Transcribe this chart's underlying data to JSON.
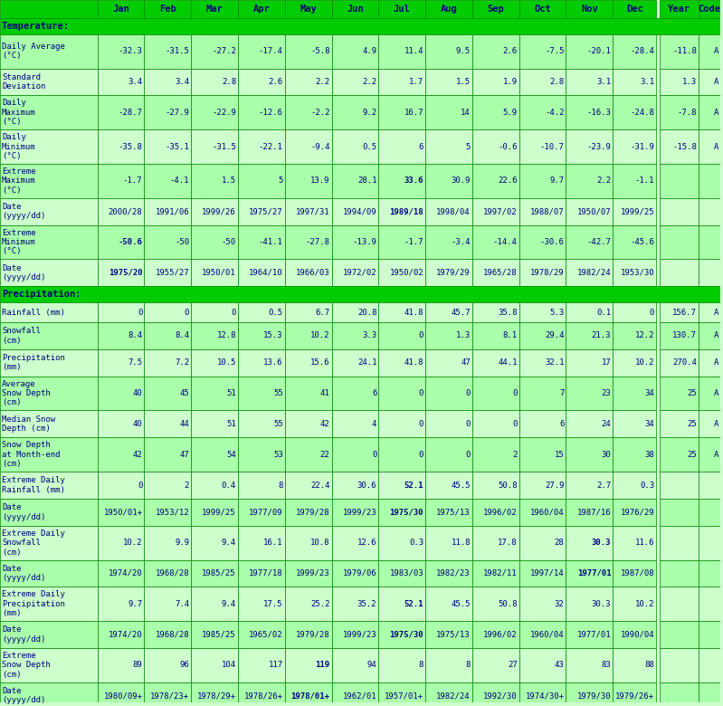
{
  "headers": [
    "",
    "Jan",
    "Feb",
    "Mar",
    "Apr",
    "May",
    "Jun",
    "Jul",
    "Aug",
    "Sep",
    "Oct",
    "Nov",
    "Dec",
    "Year",
    "Code"
  ],
  "rows": [
    {
      "label": "Temperature:",
      "type": "section_header",
      "values": [
        "",
        "",
        "",
        "",
        "",
        "",
        "",
        "",
        "",
        "",
        "",
        "",
        "",
        ""
      ]
    },
    {
      "label": "Daily Average\n(°C)",
      "type": "data",
      "values": [
        "-32.3",
        "-31.5",
        "-27.2",
        "-17.4",
        "-5.8",
        "4.9",
        "11.4",
        "9.5",
        "2.6",
        "-7.5",
        "-20.1",
        "-28.4",
        "-11.8",
        "A"
      ]
    },
    {
      "label": "Standard\nDeviation",
      "type": "data_alt",
      "values": [
        "3.4",
        "3.4",
        "2.8",
        "2.6",
        "2.2",
        "2.2",
        "1.7",
        "1.5",
        "1.9",
        "2.8",
        "3.1",
        "3.1",
        "1.3",
        "A"
      ]
    },
    {
      "label": "Daily\nMaximum\n(°C)",
      "type": "data",
      "values": [
        "-28.7",
        "-27.9",
        "-22.9",
        "-12.6",
        "-2.2",
        "9.2",
        "16.7",
        "14",
        "5.9",
        "-4.2",
        "-16.3",
        "-24.8",
        "-7.8",
        "A"
      ]
    },
    {
      "label": "Daily\nMinimum\n(°C)",
      "type": "data_alt",
      "values": [
        "-35.8",
        "-35.1",
        "-31.5",
        "-22.1",
        "-9.4",
        "0.5",
        "6",
        "5",
        "-0.6",
        "-10.7",
        "-23.9",
        "-31.9",
        "-15.8",
        "A"
      ]
    },
    {
      "label": "Extreme\nMaximum\n(°C)",
      "type": "data",
      "values": [
        "-1.7",
        "-4.1",
        "1.5",
        "5",
        "13.9",
        "28.1",
        "33.6",
        "30.9",
        "22.6",
        "9.7",
        "2.2",
        "-1.1",
        "",
        ""
      ]
    },
    {
      "label": "Date\n(yyyy/dd)",
      "type": "data_alt",
      "values": [
        "2000/28",
        "1991/06",
        "1999/26",
        "1975/27",
        "1997/31",
        "1994/09",
        "1989/18",
        "1998/04",
        "1997/02",
        "1988/07",
        "1950/07",
        "1999/25",
        "",
        ""
      ]
    },
    {
      "label": "Extreme\nMinimum\n(°C)",
      "type": "data",
      "values": [
        "-50.6",
        "-50",
        "-50",
        "-41.1",
        "-27.8",
        "-13.9",
        "-1.7",
        "-3.4",
        "-14.4",
        "-30.6",
        "-42.7",
        "-45.6",
        "",
        ""
      ]
    },
    {
      "label": "Date\n(yyyy/dd)",
      "type": "data_alt",
      "values": [
        "1975/20",
        "1955/27",
        "1950/01",
        "1964/10",
        "1966/03",
        "1972/02",
        "1950/02",
        "1979/29",
        "1965/28",
        "1978/29",
        "1982/24",
        "1953/30",
        "",
        ""
      ]
    },
    {
      "label": "Precipitation:",
      "type": "section_header",
      "values": [
        "",
        "",
        "",
        "",
        "",
        "",
        "",
        "",
        "",
        "",
        "",
        "",
        "",
        ""
      ]
    },
    {
      "label": "Rainfall (mm)",
      "type": "data_single",
      "values": [
        "0",
        "0",
        "0",
        "0.5",
        "6.7",
        "20.8",
        "41.8",
        "45.7",
        "35.8",
        "5.3",
        "0.1",
        "0",
        "156.7",
        "A"
      ]
    },
    {
      "label": "Snowfall\n(cm)",
      "type": "data_alt_single",
      "values": [
        "8.4",
        "8.4",
        "12.8",
        "15.3",
        "10.2",
        "3.3",
        "0",
        "1.3",
        "8.1",
        "29.4",
        "21.3",
        "12.2",
        "130.7",
        "A"
      ]
    },
    {
      "label": "Precipitation\n(mm)",
      "type": "data_single",
      "values": [
        "7.5",
        "7.2",
        "10.5",
        "13.6",
        "15.6",
        "24.1",
        "41.8",
        "47",
        "44.1",
        "32.1",
        "17",
        "10.2",
        "270.4",
        "A"
      ]
    },
    {
      "label": "Average\nSnow Depth\n(cm)",
      "type": "data_alt",
      "values": [
        "40",
        "45",
        "51",
        "55",
        "41",
        "6",
        "0",
        "0",
        "0",
        "7",
        "23",
        "34",
        "25",
        "A"
      ]
    },
    {
      "label": "Median Snow\nDepth (cm)",
      "type": "data",
      "values": [
        "40",
        "44",
        "51",
        "55",
        "42",
        "4",
        "0",
        "0",
        "0",
        "6",
        "24",
        "34",
        "25",
        "A"
      ]
    },
    {
      "label": "Snow Depth\nat Month-end\n(cm)",
      "type": "data_alt",
      "values": [
        "42",
        "47",
        "54",
        "53",
        "22",
        "0",
        "0",
        "0",
        "2",
        "15",
        "30",
        "38",
        "25",
        "A"
      ]
    },
    {
      "label": "Extreme Daily\nRainfall (mm)",
      "type": "data",
      "values": [
        "0",
        "2",
        "0.4",
        "8",
        "22.4",
        "30.6",
        "52.1",
        "45.5",
        "50.8",
        "27.9",
        "2.7",
        "0.3",
        "",
        ""
      ]
    },
    {
      "label": "Date\n(yyyy/dd)",
      "type": "data_alt",
      "values": [
        "1950/01+",
        "1953/12",
        "1999/25",
        "1977/09",
        "1979/28",
        "1999/23",
        "1975/30",
        "1975/13",
        "1996/02",
        "1960/04",
        "1987/16",
        "1976/29",
        "",
        ""
      ]
    },
    {
      "label": "Extreme Daily\nSnowfall\n(cm)",
      "type": "data",
      "values": [
        "10.2",
        "9.9",
        "9.4",
        "16.1",
        "10.8",
        "12.6",
        "0.3",
        "11.8",
        "17.8",
        "28",
        "30.3",
        "11.6",
        "",
        ""
      ]
    },
    {
      "label": "Date\n(yyyy/dd)",
      "type": "data_alt",
      "values": [
        "1974/20",
        "1968/28",
        "1985/25",
        "1977/18",
        "1999/23",
        "1979/06",
        "1983/03",
        "1982/23",
        "1982/11",
        "1997/14",
        "1977/01",
        "1987/08",
        "",
        ""
      ]
    },
    {
      "label": "Extreme Daily\nPrecipitation\n(mm)",
      "type": "data",
      "values": [
        "9.7",
        "7.4",
        "9.4",
        "17.5",
        "25.2",
        "35.2",
        "52.1",
        "45.5",
        "50.8",
        "32",
        "30.3",
        "10.2",
        "",
        ""
      ]
    },
    {
      "label": "Date\n(yyyy/dd)",
      "type": "data_alt",
      "values": [
        "1974/20",
        "1968/28",
        "1985/25",
        "1965/02",
        "1979/28",
        "1999/23",
        "1975/30",
        "1975/13",
        "1996/02",
        "1960/04",
        "1977/01",
        "1990/04",
        "",
        ""
      ]
    },
    {
      "label": "Extreme\nSnow Depth\n(cm)",
      "type": "data",
      "values": [
        "89",
        "96",
        "104",
        "117",
        "119",
        "94",
        "8",
        "8",
        "27",
        "43",
        "83",
        "88",
        "",
        ""
      ]
    },
    {
      "label": "Date\n(yyyy/dd)",
      "type": "data_alt",
      "values": [
        "1980/09+",
        "1978/23+",
        "1978/29+",
        "1978/26+",
        "1978/01+",
        "1962/01",
        "1957/01+",
        "1982/24",
        "1992/30",
        "1974/30+",
        "1979/30",
        "1979/26+",
        "",
        ""
      ]
    }
  ],
  "bold_cells": {
    "5": [
      6
    ],
    "6": [
      6
    ],
    "7": [
      0
    ],
    "8": [
      0
    ],
    "16": [
      6
    ],
    "17": [
      6
    ],
    "18": [
      10
    ],
    "19": [
      10
    ],
    "20": [
      6
    ],
    "21": [
      6
    ],
    "22": [
      4
    ],
    "23": [
      4
    ]
  },
  "colors": {
    "header_bg": "#00CC00",
    "header_text": "#000080",
    "section_header_bg": "#00CC00",
    "section_header_text": "#000080",
    "row_bg_1": "#CCFFCC",
    "row_bg_2": "#AAFFAA",
    "border": "#008800",
    "label_text": "#000080",
    "value_text": "#000080",
    "background": "#CCFFCC"
  }
}
